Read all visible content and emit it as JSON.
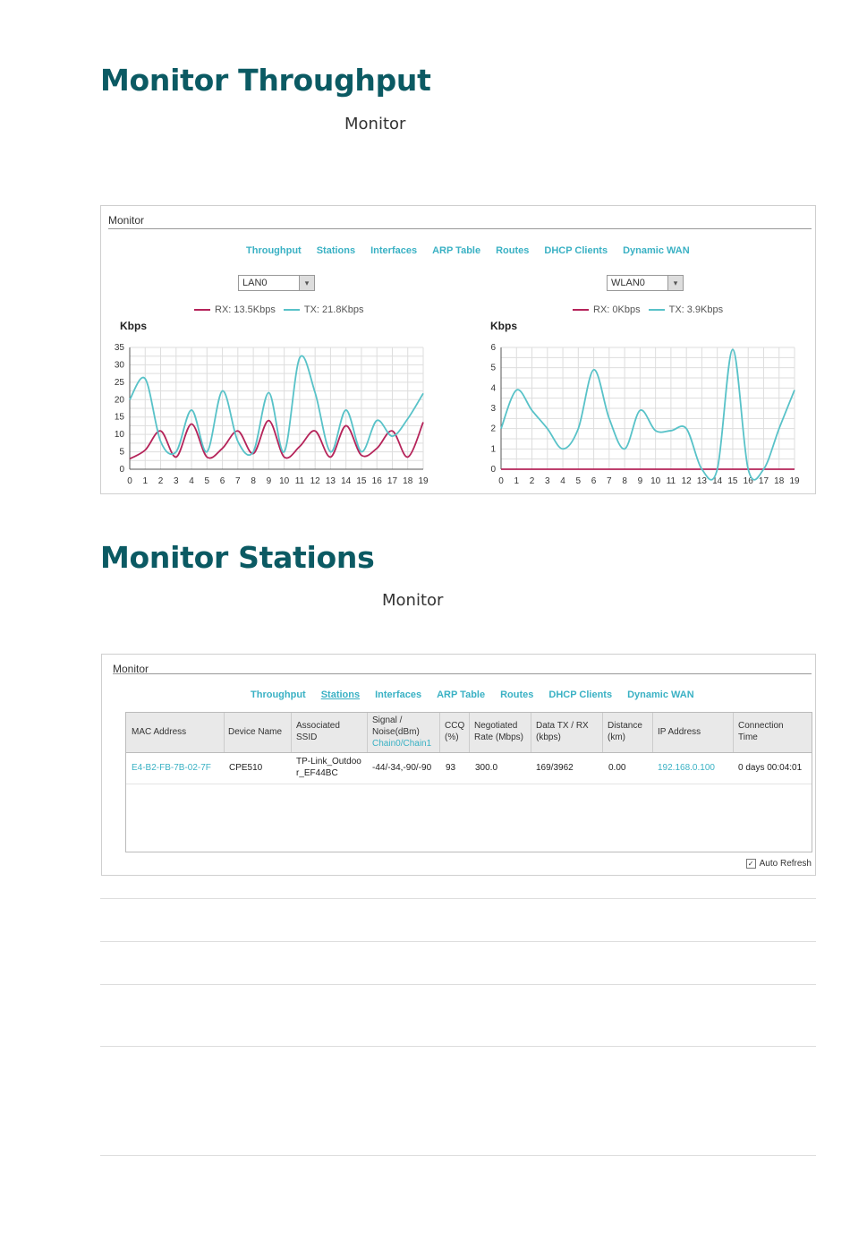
{
  "section1": {
    "title": "Monitor Throughput",
    "subtitle": "Monitor"
  },
  "section2": {
    "title": "Monitor Stations",
    "subtitle": "Monitor"
  },
  "panel1": {
    "title": "Monitor",
    "tabs": [
      "Throughput",
      "Stations",
      "Interfaces",
      "ARP Table",
      "Routes",
      "DHCP Clients",
      "Dynamic WAN"
    ],
    "active_tab": "Throughput"
  },
  "panel2": {
    "title": "Monitor",
    "tabs": [
      "Throughput",
      "Stations",
      "Interfaces",
      "ARP Table",
      "Routes",
      "DHCP Clients",
      "Dynamic WAN"
    ],
    "active_tab": "Stations",
    "auto_refresh_label": "Auto Refresh",
    "auto_refresh_checked": true,
    "table": {
      "headers": [
        [
          "MAC Address"
        ],
        [
          "Device Name"
        ],
        [
          "Associated",
          "SSID"
        ],
        [
          "Signal /",
          "Noise(dBm)",
          "Chain0/Chain1"
        ],
        [
          "CCQ",
          "(%)"
        ],
        [
          "Negotiated",
          "Rate (Mbps)"
        ],
        [
          "Data TX / RX",
          "(kbps)"
        ],
        [
          "Distance",
          "(km)"
        ],
        [
          "IP Address"
        ],
        [
          "Connection",
          "Time"
        ]
      ],
      "rows": [
        {
          "mac": "E4-B2-FB-7B-02-7F",
          "device": "CPE510",
          "ssid": [
            "TP-Link_Outdoo",
            "r_EF44BC"
          ],
          "signal": "-44/-34,-90/-90",
          "ccq": "93",
          "rate": "300.0",
          "data": "169/3962",
          "distance": "0.00",
          "ip": "192.168.0.100",
          "time": "0 days 00:04:01"
        }
      ]
    }
  },
  "colors": {
    "rx": "#b5245a",
    "tx": "#58c2c8",
    "accent": "#3ab1c4",
    "heading": "#0b5a63"
  },
  "chart_data": [
    {
      "type": "line",
      "interface_select": "LAN0",
      "ylabel": "Kbps",
      "x": [
        0,
        1,
        2,
        3,
        4,
        5,
        6,
        7,
        8,
        9,
        10,
        11,
        12,
        13,
        14,
        15,
        16,
        17,
        18,
        19
      ],
      "ylim": [
        0,
        35
      ],
      "yticks": [
        0,
        5,
        10,
        15,
        20,
        25,
        30,
        35
      ],
      "grid": true,
      "legend_position": "top",
      "series": [
        {
          "name": "RX: 13.5Kbps",
          "color": "#b5245a",
          "values": [
            3,
            5.5,
            11,
            3.5,
            13,
            3.5,
            6,
            11,
            4.5,
            14,
            3.5,
            6.5,
            11,
            3.5,
            12.5,
            4,
            6,
            11,
            3.5,
            13.5
          ]
        },
        {
          "name": "TX: 21.8Kbps",
          "color": "#58c2c8",
          "values": [
            20,
            26,
            8,
            5,
            17,
            5,
            22.5,
            8,
            5,
            22,
            5,
            32,
            22,
            5,
            17,
            5,
            14,
            9.5,
            14.5,
            21.8
          ]
        }
      ]
    },
    {
      "type": "line",
      "interface_select": "WLAN0",
      "ylabel": "Kbps",
      "x": [
        0,
        1,
        2,
        3,
        4,
        5,
        6,
        7,
        8,
        9,
        10,
        11,
        12,
        13,
        14,
        15,
        16,
        17,
        18,
        19
      ],
      "ylim": [
        0,
        6
      ],
      "yticks": [
        0,
        1,
        2,
        3,
        4,
        5,
        6
      ],
      "grid": true,
      "legend_position": "top",
      "series": [
        {
          "name": "RX: 0Kbps",
          "color": "#b5245a",
          "values": [
            0,
            0,
            0,
            0,
            0,
            0,
            0,
            0,
            0,
            0,
            0,
            0,
            0,
            0,
            0,
            0,
            0,
            0,
            0,
            0
          ]
        },
        {
          "name": "TX: 3.9Kbps",
          "color": "#58c2c8",
          "values": [
            2,
            3.9,
            2.9,
            2,
            1,
            2,
            4.9,
            2.5,
            1,
            2.9,
            1.9,
            1.9,
            2,
            0,
            0,
            5.9,
            0,
            0,
            2,
            3.9
          ]
        }
      ]
    }
  ]
}
